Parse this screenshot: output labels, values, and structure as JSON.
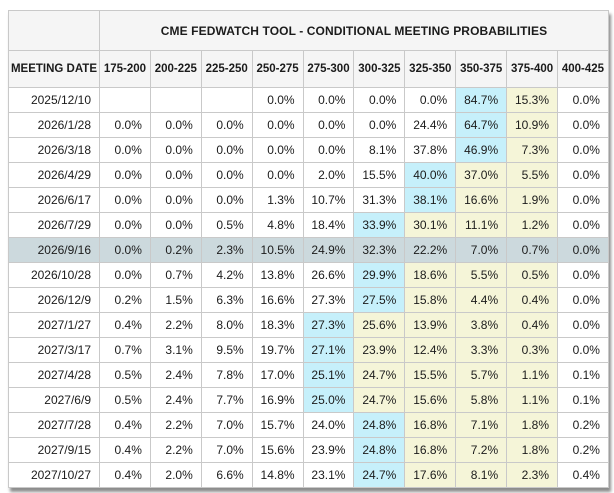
{
  "colors": {
    "header_bg": "#f5f5f5",
    "grid_line": "#c9c9c9",
    "text": "#1b1b1b",
    "max_probability_cell": "#c6f0fb",
    "path_cell": "#f5f5d8",
    "selected_row": "#ccd9dd",
    "page_background": "#ffffff"
  },
  "chart_data": {
    "type": "table",
    "title": "CME FEDWATCH TOOL - CONDITIONAL MEETING PROBABILITIES",
    "row_header_label": "MEETING DATE",
    "columns": [
      "175-200",
      "200-225",
      "225-250",
      "250-275",
      "275-300",
      "300-325",
      "325-350",
      "350-375",
      "375-400",
      "400-425"
    ],
    "highlight_legend": {
      "max": "highest probability cell (cyan)",
      "path": "cells between max and 375-400 (pale yellow)",
      "selected": "highlighted meeting row (gray-blue)"
    },
    "rows": [
      {
        "date": "2025/12/10",
        "selected": false,
        "values": [
          "",
          "",
          "",
          "0.0%",
          "0.0%",
          "0.0%",
          "0.0%",
          "84.7%",
          "15.3%",
          "0.0%"
        ],
        "styles": [
          "",
          "",
          "",
          "",
          "",
          "",
          "",
          "max",
          "path",
          ""
        ]
      },
      {
        "date": "2026/1/28",
        "selected": false,
        "values": [
          "0.0%",
          "0.0%",
          "0.0%",
          "0.0%",
          "0.0%",
          "0.0%",
          "24.4%",
          "64.7%",
          "10.9%",
          "0.0%"
        ],
        "styles": [
          "",
          "",
          "",
          "",
          "",
          "",
          "",
          "max",
          "path",
          ""
        ]
      },
      {
        "date": "2026/3/18",
        "selected": false,
        "values": [
          "0.0%",
          "0.0%",
          "0.0%",
          "0.0%",
          "0.0%",
          "8.1%",
          "37.8%",
          "46.9%",
          "7.3%",
          "0.0%"
        ],
        "styles": [
          "",
          "",
          "",
          "",
          "",
          "",
          "",
          "max",
          "path",
          ""
        ]
      },
      {
        "date": "2026/4/29",
        "selected": false,
        "values": [
          "0.0%",
          "0.0%",
          "0.0%",
          "0.0%",
          "2.0%",
          "15.5%",
          "40.0%",
          "37.0%",
          "5.5%",
          "0.0%"
        ],
        "styles": [
          "",
          "",
          "",
          "",
          "",
          "",
          "max",
          "path",
          "path",
          ""
        ]
      },
      {
        "date": "2026/6/17",
        "selected": false,
        "values": [
          "0.0%",
          "0.0%",
          "0.0%",
          "1.3%",
          "10.7%",
          "31.3%",
          "38.1%",
          "16.6%",
          "1.9%",
          "0.0%"
        ],
        "styles": [
          "",
          "",
          "",
          "",
          "",
          "",
          "max",
          "path",
          "path",
          ""
        ]
      },
      {
        "date": "2026/7/29",
        "selected": false,
        "values": [
          "0.0%",
          "0.0%",
          "0.5%",
          "4.8%",
          "18.4%",
          "33.9%",
          "30.1%",
          "11.1%",
          "1.2%",
          "0.0%"
        ],
        "styles": [
          "",
          "",
          "",
          "",
          "",
          "max",
          "path",
          "path",
          "path",
          ""
        ]
      },
      {
        "date": "2026/9/16",
        "selected": true,
        "values": [
          "0.0%",
          "0.2%",
          "2.3%",
          "10.5%",
          "24.9%",
          "32.3%",
          "22.2%",
          "7.0%",
          "0.7%",
          "0.0%"
        ],
        "styles": [
          "",
          "",
          "",
          "",
          "",
          "",
          "",
          "",
          "",
          ""
        ]
      },
      {
        "date": "2026/10/28",
        "selected": false,
        "values": [
          "0.0%",
          "0.7%",
          "4.2%",
          "13.8%",
          "26.6%",
          "29.9%",
          "18.6%",
          "5.5%",
          "0.5%",
          "0.0%"
        ],
        "styles": [
          "",
          "",
          "",
          "",
          "",
          "max",
          "path",
          "path",
          "path",
          ""
        ]
      },
      {
        "date": "2026/12/9",
        "selected": false,
        "values": [
          "0.2%",
          "1.5%",
          "6.3%",
          "16.6%",
          "27.3%",
          "27.5%",
          "15.8%",
          "4.4%",
          "0.4%",
          "0.0%"
        ],
        "styles": [
          "",
          "",
          "",
          "",
          "",
          "max",
          "path",
          "path",
          "path",
          ""
        ]
      },
      {
        "date": "2027/1/27",
        "selected": false,
        "values": [
          "0.4%",
          "2.2%",
          "8.0%",
          "18.3%",
          "27.3%",
          "25.6%",
          "13.9%",
          "3.8%",
          "0.4%",
          "0.0%"
        ],
        "styles": [
          "",
          "",
          "",
          "",
          "max",
          "path",
          "path",
          "path",
          "path",
          ""
        ]
      },
      {
        "date": "2027/3/17",
        "selected": false,
        "values": [
          "0.7%",
          "3.1%",
          "9.5%",
          "19.7%",
          "27.1%",
          "23.9%",
          "12.4%",
          "3.3%",
          "0.3%",
          "0.0%"
        ],
        "styles": [
          "",
          "",
          "",
          "",
          "max",
          "path",
          "path",
          "path",
          "path",
          ""
        ]
      },
      {
        "date": "2027/4/28",
        "selected": false,
        "values": [
          "0.5%",
          "2.4%",
          "7.8%",
          "17.0%",
          "25.1%",
          "24.7%",
          "15.5%",
          "5.7%",
          "1.1%",
          "0.1%"
        ],
        "styles": [
          "",
          "",
          "",
          "",
          "max",
          "path",
          "path",
          "path",
          "path",
          ""
        ]
      },
      {
        "date": "2027/6/9",
        "selected": false,
        "values": [
          "0.5%",
          "2.4%",
          "7.7%",
          "16.9%",
          "25.0%",
          "24.7%",
          "15.6%",
          "5.8%",
          "1.1%",
          "0.1%"
        ],
        "styles": [
          "",
          "",
          "",
          "",
          "max",
          "path",
          "path",
          "path",
          "path",
          ""
        ]
      },
      {
        "date": "2027/7/28",
        "selected": false,
        "values": [
          "0.4%",
          "2.2%",
          "7.0%",
          "15.7%",
          "24.0%",
          "24.8%",
          "16.8%",
          "7.1%",
          "1.8%",
          "0.2%"
        ],
        "styles": [
          "",
          "",
          "",
          "",
          "",
          "max",
          "path",
          "path",
          "path",
          ""
        ]
      },
      {
        "date": "2027/9/15",
        "selected": false,
        "values": [
          "0.4%",
          "2.2%",
          "7.0%",
          "15.6%",
          "23.9%",
          "24.8%",
          "16.8%",
          "7.2%",
          "1.8%",
          "0.2%"
        ],
        "styles": [
          "",
          "",
          "",
          "",
          "",
          "max",
          "path",
          "path",
          "path",
          ""
        ]
      },
      {
        "date": "2027/10/27",
        "selected": false,
        "values": [
          "0.4%",
          "2.0%",
          "6.6%",
          "14.8%",
          "23.1%",
          "24.7%",
          "17.6%",
          "8.1%",
          "2.3%",
          "0.4%"
        ],
        "styles": [
          "",
          "",
          "",
          "",
          "",
          "max",
          "path",
          "path",
          "path",
          ""
        ]
      }
    ]
  }
}
